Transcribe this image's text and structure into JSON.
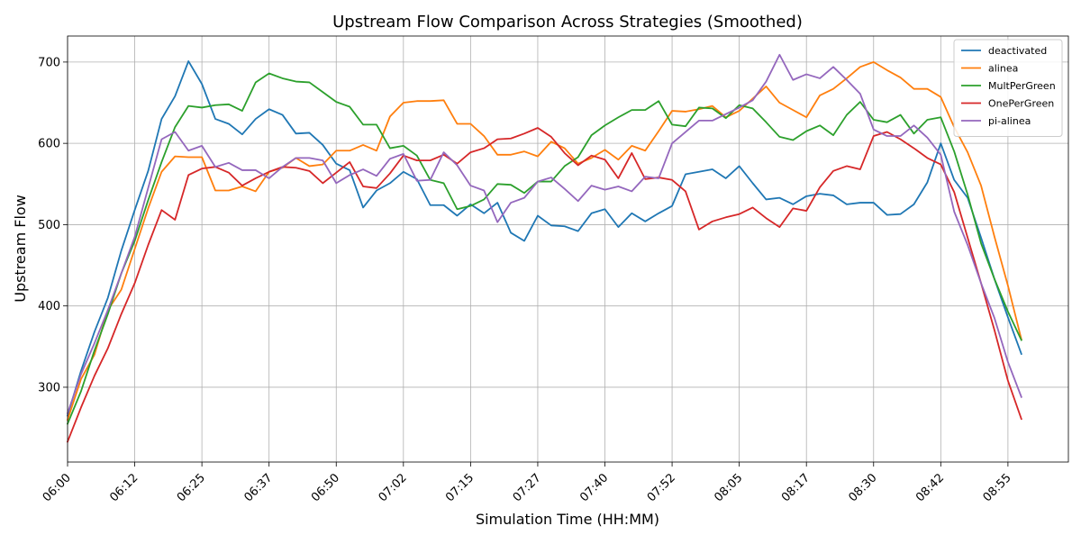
{
  "chart_data": {
    "type": "line",
    "title": "Upstream Flow Comparison Across Strategies (Smoothed)",
    "xlabel": "Simulation Time (HH:MM)",
    "ylabel": "Upstream Flow",
    "xlim": [
      0,
      74.5
    ],
    "ylim": [
      208,
      732
    ],
    "grid": true,
    "legend_position": "top-right",
    "x_ticks": [
      {
        "pos": 0,
        "label": "06:00"
      },
      {
        "pos": 5,
        "label": "06:12"
      },
      {
        "pos": 10,
        "label": "06:25"
      },
      {
        "pos": 15,
        "label": "06:37"
      },
      {
        "pos": 20,
        "label": "06:50"
      },
      {
        "pos": 25,
        "label": "07:02"
      },
      {
        "pos": 30,
        "label": "07:15"
      },
      {
        "pos": 35,
        "label": "07:27"
      },
      {
        "pos": 40,
        "label": "07:40"
      },
      {
        "pos": 45,
        "label": "07:52"
      },
      {
        "pos": 50,
        "label": "08:05"
      },
      {
        "pos": 55,
        "label": "08:17"
      },
      {
        "pos": 60,
        "label": "08:30"
      },
      {
        "pos": 65,
        "label": "08:42"
      },
      {
        "pos": 70,
        "label": "08:55"
      }
    ],
    "y_ticks": [
      300,
      400,
      500,
      600,
      700
    ],
    "x": [
      0,
      1,
      2,
      3,
      4,
      5,
      6,
      7,
      8,
      9,
      10,
      11,
      12,
      13,
      14,
      15,
      16,
      17,
      18,
      19,
      20,
      21,
      22,
      23,
      24,
      25,
      26,
      27,
      28,
      29,
      30,
      31,
      32,
      33,
      34,
      35,
      36,
      37,
      38,
      39,
      40,
      41,
      42,
      43,
      44,
      45,
      46,
      47,
      48,
      49,
      50,
      51,
      52,
      53,
      54,
      55,
      56,
      57,
      58,
      59,
      60,
      61,
      62,
      63,
      64,
      65,
      66,
      67,
      68,
      69,
      70,
      71
    ],
    "series": [
      {
        "name": "deactivated",
        "color": "#1f77b4",
        "values": [
          265,
          320,
          368,
          410,
          468,
          518,
          566,
          630,
          658,
          701,
          673,
          630,
          624,
          611,
          630,
          642,
          635,
          612,
          613,
          598,
          575,
          567,
          521,
          542,
          551,
          565,
          556,
          524,
          524,
          511,
          525,
          514,
          527,
          490,
          480,
          511,
          499,
          498,
          492,
          514,
          519,
          497,
          514,
          504,
          514,
          523,
          562,
          565,
          568,
          557,
          572,
          551,
          531,
          533,
          525,
          535,
          538,
          536,
          525,
          527,
          527,
          512,
          513,
          525,
          552,
          600,
          555,
          533,
          484,
          433,
          386,
          341
        ]
      },
      {
        "name": "alinea",
        "color": "#ff7f0e",
        "values": [
          260,
          310,
          340,
          395,
          420,
          470,
          520,
          565,
          584,
          583,
          583,
          542,
          542,
          547,
          541,
          565,
          570,
          582,
          572,
          574,
          591,
          591,
          598,
          591,
          633,
          650,
          652,
          652,
          653,
          624,
          624,
          609,
          586,
          586,
          590,
          584,
          602,
          594,
          575,
          582,
          592,
          580,
          597,
          591,
          615,
          640,
          639,
          642,
          646,
          632,
          640,
          655,
          670,
          650,
          641,
          632,
          659,
          667,
          680,
          694,
          700,
          690,
          681,
          667,
          667,
          657,
          620,
          589,
          548,
          485,
          425,
          359
        ]
      },
      {
        "name": "MultPerGreen",
        "color": "#2ca02c",
        "values": [
          255,
          295,
          345,
          390,
          440,
          480,
          530,
          577,
          620,
          646,
          644,
          647,
          648,
          640,
          675,
          686,
          680,
          676,
          675,
          663,
          651,
          645,
          623,
          623,
          594,
          597,
          585,
          555,
          551,
          519,
          523,
          531,
          550,
          549,
          539,
          553,
          553,
          572,
          583,
          610,
          622,
          632,
          641,
          641,
          652,
          623,
          621,
          644,
          643,
          631,
          647,
          643,
          626,
          608,
          604,
          615,
          622,
          610,
          635,
          651,
          629,
          626,
          635,
          612,
          629,
          632,
          590,
          537,
          477,
          433,
          393,
          358
        ]
      },
      {
        "name": "OnePerGreen",
        "color": "#d62728",
        "values": [
          233,
          275,
          314,
          348,
          390,
          428,
          475,
          518,
          506,
          561,
          569,
          571,
          564,
          548,
          557,
          565,
          571,
          570,
          566,
          551,
          564,
          577,
          547,
          545,
          563,
          585,
          579,
          579,
          586,
          575,
          589,
          594,
          605,
          606,
          612,
          619,
          608,
          588,
          573,
          585,
          580,
          557,
          588,
          556,
          558,
          555,
          541,
          494,
          504,
          509,
          513,
          521,
          508,
          497,
          520,
          517,
          546,
          566,
          572,
          568,
          609,
          614,
          605,
          594,
          582,
          574,
          540,
          484,
          428,
          370,
          308,
          261
        ]
      },
      {
        "name": "pi-alinea",
        "color": "#9467bd",
        "values": [
          268,
          316,
          354,
          395,
          440,
          485,
          545,
          605,
          614,
          591,
          597,
          571,
          576,
          567,
          567,
          557,
          571,
          582,
          582,
          579,
          551,
          561,
          568,
          560,
          581,
          587,
          554,
          555,
          589,
          573,
          548,
          542,
          503,
          527,
          533,
          553,
          558,
          544,
          529,
          548,
          543,
          547,
          541,
          559,
          557,
          600,
          614,
          628,
          628,
          636,
          644,
          653,
          676,
          709,
          678,
          685,
          680,
          694,
          678,
          661,
          617,
          609,
          609,
          622,
          607,
          586,
          516,
          475,
          428,
          385,
          331,
          288
        ]
      }
    ]
  }
}
